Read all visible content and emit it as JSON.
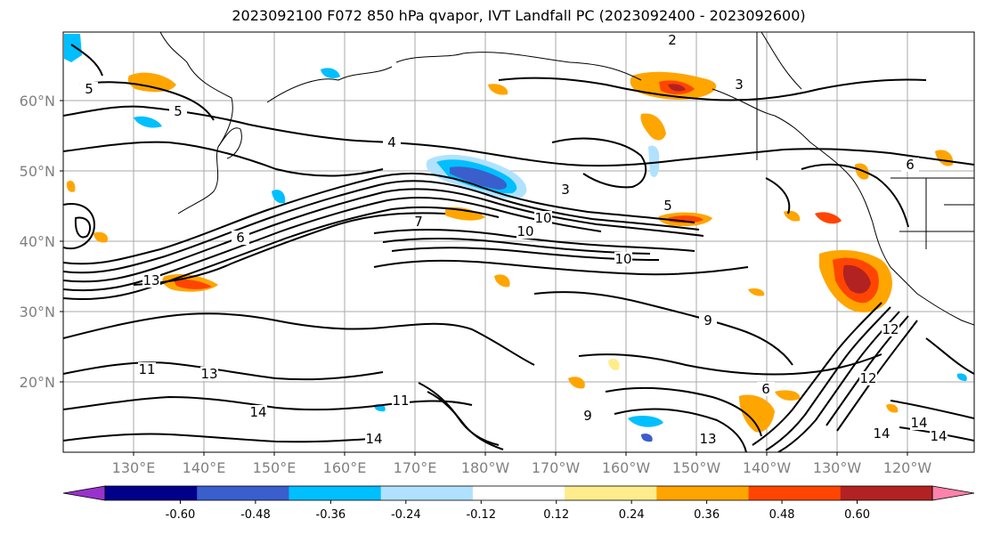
{
  "title": "2023092100 F072 850 hPa qvapor, IVT Landfall PC (2023092400 - 2023092600)",
  "lat_ticks": [
    "60°N",
    "50°N",
    "40°N",
    "30°N",
    "20°N"
  ],
  "lon_ticks": [
    "130°E",
    "140°E",
    "150°E",
    "160°E",
    "170°E",
    "180°W",
    "170°W",
    "160°W",
    "150°W",
    "140°W",
    "130°W",
    "120°W"
  ],
  "colorbar": {
    "ticks": [
      "-0.60",
      "-0.48",
      "-0.36",
      "-0.24",
      "-0.12",
      "0.12",
      "0.24",
      "0.36",
      "0.48",
      "0.60"
    ],
    "colors": [
      "#9932cc",
      "#00008b",
      "#3a5fcd",
      "#00bfff",
      "#b0e2ff",
      "#ffffff",
      "#ffec8b",
      "#ffa500",
      "#ff4500",
      "#b22222",
      "#ff82ab"
    ]
  },
  "contour_labels": [
    "2",
    "3",
    "3",
    "4",
    "5",
    "5",
    "5",
    "6",
    "6",
    "6",
    "7",
    "9",
    "9",
    "10",
    "10",
    "10",
    "11",
    "11",
    "12",
    "12",
    "13",
    "13",
    "13",
    "14",
    "14",
    "14",
    "14",
    "14"
  ]
}
